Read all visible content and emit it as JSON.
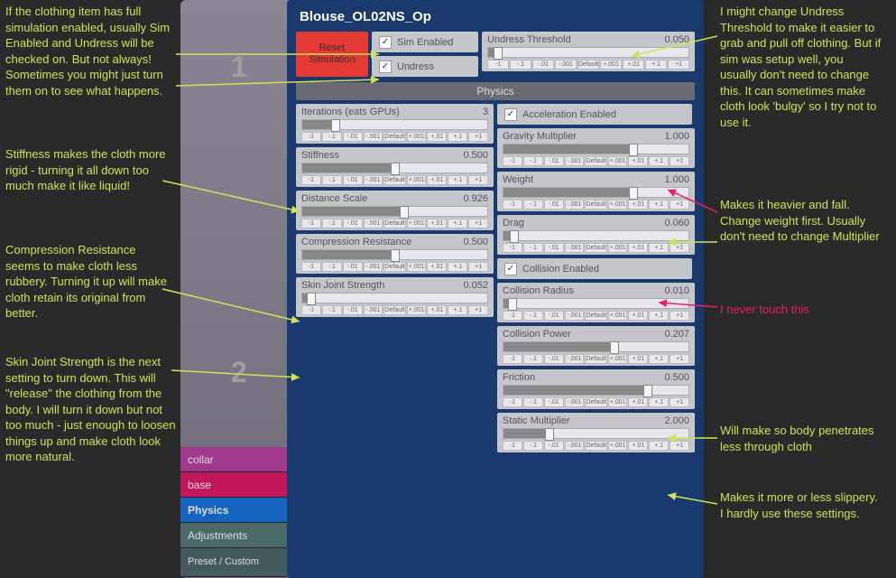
{
  "title": "Blouse_OL02NS_Op",
  "reset_label": "Reset\nSimulation",
  "sim_enabled": {
    "label": "Sim Enabled",
    "checked": true
  },
  "undress": {
    "label": "Undress",
    "checked": true
  },
  "undress_threshold": {
    "label": "Undress Threshold",
    "value": "0.050",
    "fill": 5
  },
  "physics_header": "Physics",
  "left_col": [
    {
      "label": "Iterations (eats GPUs)",
      "value": "3",
      "fill": 18
    },
    {
      "label": "Stiffness",
      "value": "0.500",
      "fill": 50
    },
    {
      "label": "Distance Scale",
      "value": "0.926",
      "fill": 55
    },
    {
      "label": "Compression Resistance",
      "value": "0.500",
      "fill": 50
    },
    {
      "label": "Skin Joint Strength",
      "value": "0.052",
      "fill": 5
    }
  ],
  "accel": {
    "label": "Acceleration Enabled",
    "checked": true
  },
  "right_col": [
    {
      "label": "Gravity Multiplier",
      "value": "1.000",
      "fill": 70
    },
    {
      "label": "Weight",
      "value": "1.000",
      "fill": 70
    },
    {
      "label": "Drag",
      "value": "0.060",
      "fill": 6
    }
  ],
  "collision": {
    "label": "Collision Enabled",
    "checked": true
  },
  "right_col2": [
    {
      "label": "Collision Radius",
      "value": "0.010",
      "fill": 5
    },
    {
      "label": "Collision Power",
      "value": "0.207",
      "fill": 60
    },
    {
      "label": "Friction",
      "value": "0.500",
      "fill": 78
    },
    {
      "label": "Static Multiplier",
      "value": "2.000",
      "fill": 25
    }
  ],
  "btns": [
    "-1",
    "-.1",
    "-.01",
    "-.001",
    "Default",
    "+.001",
    "+.01",
    "+.1",
    "+1"
  ],
  "tabs": {
    "collar": "collar",
    "base": "base",
    "physics": "Physics",
    "adjust": "Adjustments",
    "preset": "Preset / Custom"
  },
  "annot": {
    "a1": "If the clothing item has full simulation enabled, usually Sim Enabled and Undress will be checked on. But not always! Sometimes you might just turn them on to see what happens.",
    "a2": "Stiffness makes the cloth more rigid - turning it all down too much make it like liquid!",
    "a3": "Compression Resistance seems to make cloth less rubbery. Turning it up will make cloth retain its original from better.",
    "a4": "Skin Joint Strength is the next setting to turn down. This will \"release\" the clothing from the body. I will turn it down but not too much - just enough to loosen things up and make cloth look more natural.",
    "r1": "I might change Undress Threshold to make it easier to grab and pull off clothing. But if sim was setup well, you usually don't need to change this. It can sometimes make cloth look 'bulgy' so I try not to use it.",
    "r2": "Makes it heavier and fall. Change weight first. Usually don't need to change Multiplier",
    "r3": "I never touch this",
    "r4": "Will make so body penetrates less through cloth",
    "r5": "Makes it more or less slippery. I hardly use these settings."
  },
  "badges": {
    "one": "1",
    "two": "2"
  },
  "colors": {
    "panel_bg": "#1a3a6e",
    "annot": "#d4e157",
    "pink": "#e91e63"
  }
}
